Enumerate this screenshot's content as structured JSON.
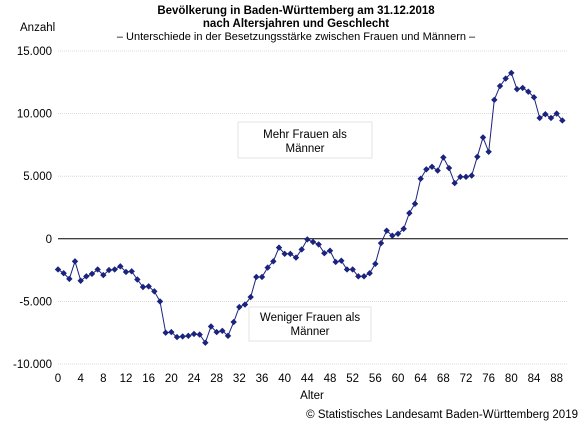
{
  "chart_data": {
    "type": "line",
    "title": [
      "Bevölkerung in Baden-Württemberg am 31.12.2018",
      "nach Altersjahren und Geschlecht"
    ],
    "subtitle": "– Unterschiede in der Besetzungsstärke zwischen Frauen und Männern –",
    "ylabel": "Anzahl",
    "xlabel": "Alter",
    "ylim": [
      -10000,
      15000
    ],
    "yticks": [
      -10000,
      -5000,
      0,
      5000,
      10000,
      15000
    ],
    "ytick_labels": [
      "-10.000",
      "-5.000",
      "0",
      "5.000",
      "10.000",
      "15.000"
    ],
    "xlim": [
      0,
      90
    ],
    "xticks": [
      0,
      4,
      8,
      12,
      16,
      20,
      24,
      28,
      32,
      36,
      40,
      44,
      48,
      52,
      56,
      60,
      64,
      68,
      72,
      76,
      80,
      84,
      88
    ],
    "grid": "horizontal",
    "series_color": "#1a237e",
    "zero_line": true,
    "x": [
      0,
      1,
      2,
      3,
      4,
      5,
      6,
      7,
      8,
      9,
      10,
      11,
      12,
      13,
      14,
      15,
      16,
      17,
      18,
      19,
      20,
      21,
      22,
      23,
      24,
      25,
      26,
      27,
      28,
      29,
      30,
      31,
      32,
      33,
      34,
      35,
      36,
      37,
      38,
      39,
      40,
      41,
      42,
      43,
      44,
      45,
      46,
      47,
      48,
      49,
      50,
      51,
      52,
      53,
      54,
      55,
      56,
      57,
      58,
      59,
      60,
      61,
      62,
      63,
      64,
      65,
      66,
      67,
      68,
      69,
      70,
      71,
      72,
      73,
      74,
      75,
      76,
      77,
      78,
      79,
      80,
      81,
      82,
      83,
      84,
      85,
      86,
      87,
      88,
      89
    ],
    "values": [
      -2450,
      -2750,
      -3200,
      -1800,
      -3350,
      -3000,
      -2800,
      -2450,
      -2900,
      -2500,
      -2450,
      -2200,
      -2650,
      -2600,
      -3250,
      -3850,
      -3800,
      -4200,
      -5000,
      -7500,
      -7450,
      -7850,
      -7800,
      -7750,
      -7600,
      -7650,
      -8300,
      -7000,
      -7450,
      -7350,
      -7750,
      -6650,
      -5450,
      -5250,
      -4650,
      -3050,
      -3050,
      -2300,
      -1800,
      -700,
      -1200,
      -1200,
      -1500,
      -850,
      -50,
      -250,
      -450,
      -1150,
      -950,
      -1850,
      -1750,
      -2450,
      -2450,
      -3000,
      -3000,
      -2750,
      -2000,
      -350,
      650,
      250,
      400,
      800,
      2050,
      2800,
      4800,
      5550,
      5750,
      5450,
      6500,
      5650,
      4450,
      4950,
      4950,
      5050,
      6550,
      8100,
      6950,
      11100,
      12200,
      12800,
      13250,
      11950,
      12050,
      11750,
      11300,
      9650,
      9950,
      9650,
      10000,
      9450
    ],
    "annotations": [
      "Mehr Frauen als Männer",
      "Weniger Frauen als Männer"
    ],
    "source": "© Statistisches Landesamt Baden-Württemberg 2019"
  }
}
